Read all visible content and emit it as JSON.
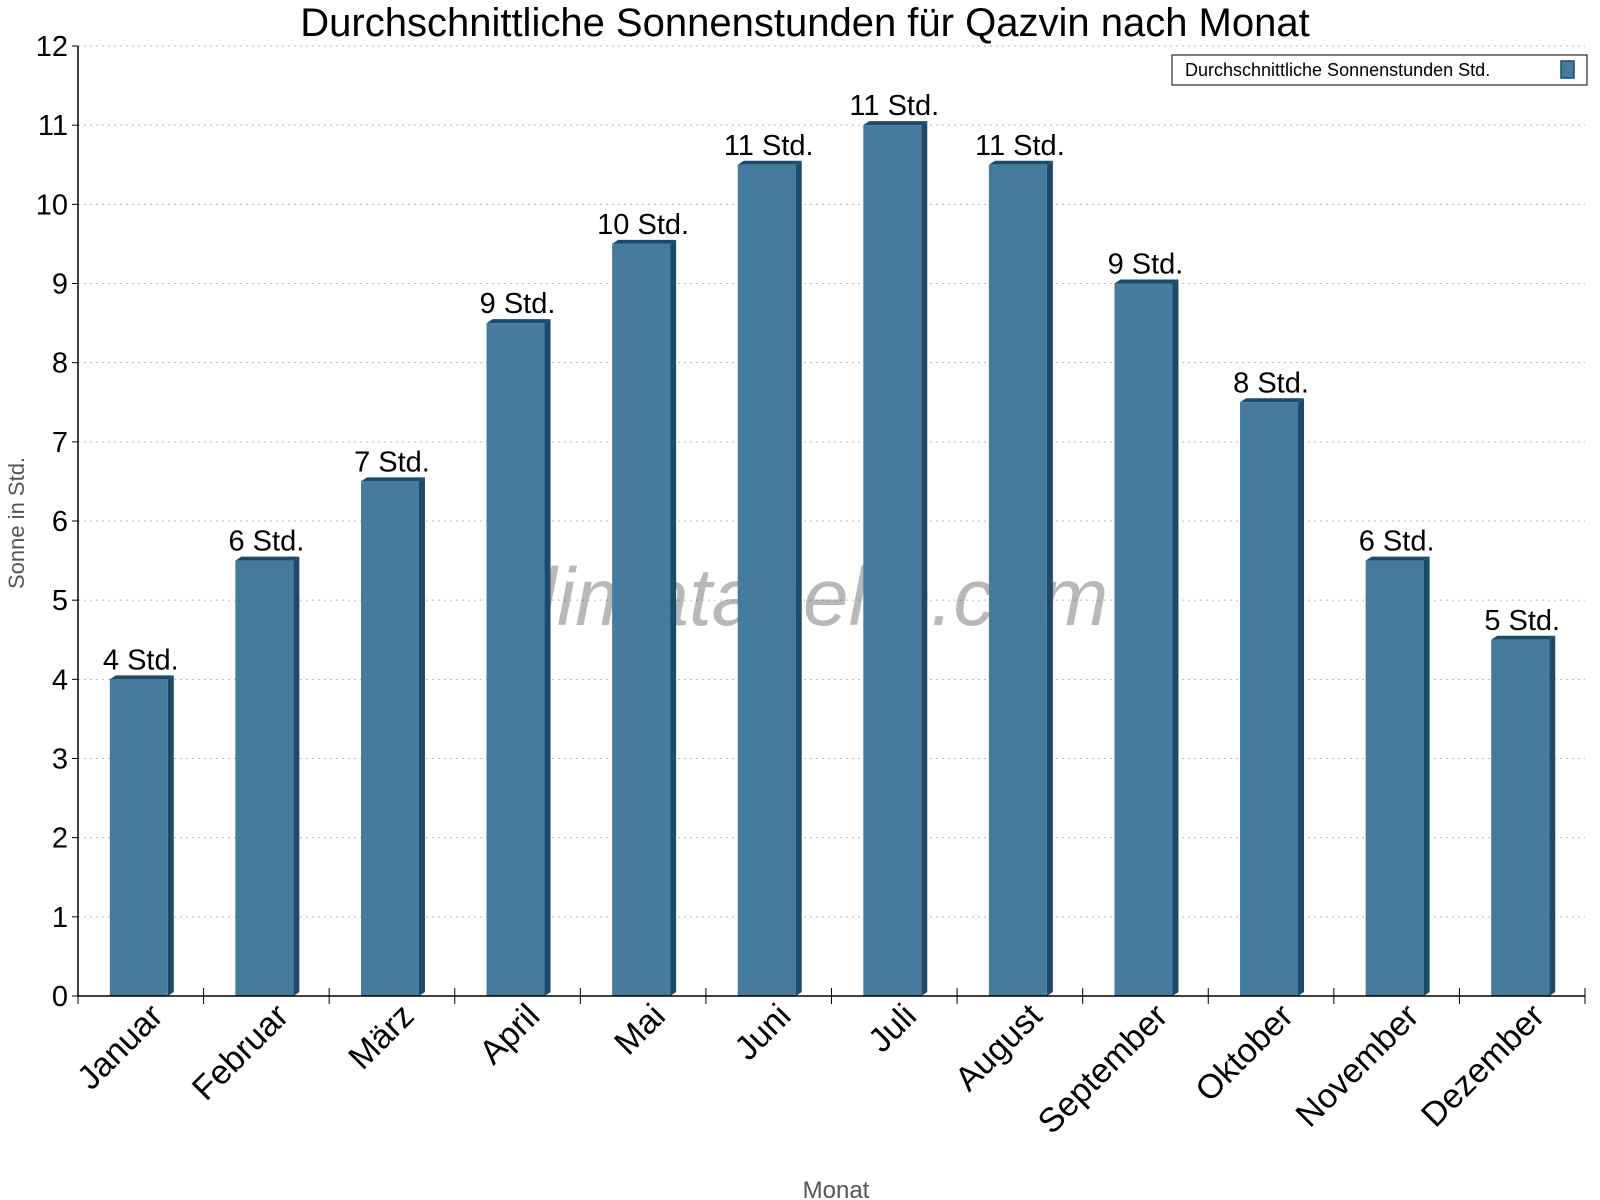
{
  "chart_data": {
    "type": "bar",
    "title": "Durchschnittliche Sonnenstunden für Qazvin nach Monat",
    "xlabel": "Monat",
    "ylabel": "Sonne in Std.",
    "ylim": [
      0,
      12
    ],
    "yticks": [
      0,
      1,
      2,
      3,
      4,
      5,
      6,
      7,
      8,
      9,
      10,
      11,
      12
    ],
    "grid": true,
    "legend_position": "top-right",
    "categories": [
      "Januar",
      "Februar",
      "März",
      "April",
      "Mai",
      "Juni",
      "Juli",
      "August",
      "September",
      "Oktober",
      "November",
      "Dezember"
    ],
    "series": [
      {
        "name": "Durchschnittliche Sonnenstunden Std.",
        "values": [
          4,
          5.5,
          6.5,
          8.5,
          9.5,
          10.5,
          11,
          10.5,
          9,
          7.5,
          5.5,
          4.5
        ],
        "labels": [
          "4 Std.",
          "6 Std.",
          "7 Std.",
          "9 Std.",
          "10 Std.",
          "11 Std.",
          "11 Std.",
          "11 Std.",
          "9 Std.",
          "8 Std.",
          "6 Std.",
          "5 Std."
        ],
        "color": "#467b9e",
        "side_color": "#1b4a6b"
      }
    ],
    "watermark": "klimatabelle.com"
  }
}
